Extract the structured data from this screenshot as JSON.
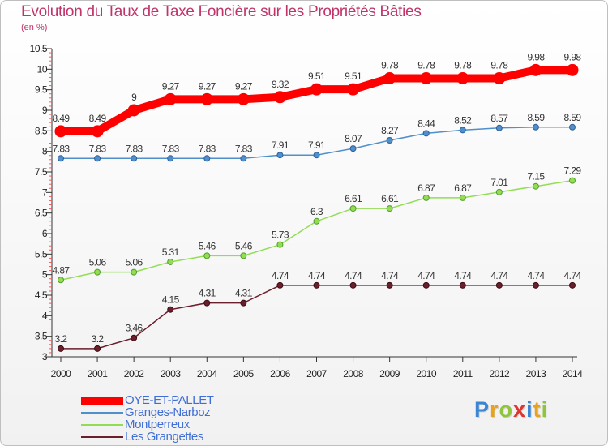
{
  "chart_data": {
    "type": "line",
    "title": "Evolution du Taux de Taxe Foncière sur les Propriétés Bâties",
    "subtitle": "(en %)",
    "xlabel": "",
    "ylabel": "",
    "ylim": [
      3,
      10.5
    ],
    "y_ticks": [
      "3",
      "3.5",
      "4",
      "4.5",
      "5",
      "5.5",
      "6",
      "6.5",
      "7",
      "7.5",
      "8",
      "8.5",
      "9",
      "9.5",
      "10",
      "10.5"
    ],
    "categories": [
      "2000",
      "2001",
      "2002",
      "2003",
      "2004",
      "2005",
      "2006",
      "2007",
      "2008",
      "2009",
      "2010",
      "2011",
      "2012",
      "2013",
      "2014"
    ],
    "grid": false,
    "legend_position": "bottom-left",
    "series": [
      {
        "name": "OYE-ET-PALLET",
        "color": "#ff0000",
        "values": [
          8.49,
          8.49,
          9,
          9.27,
          9.27,
          9.27,
          9.32,
          9.51,
          9.51,
          9.78,
          9.78,
          9.78,
          9.78,
          9.98,
          9.98
        ],
        "labels": [
          "8.49",
          "8.49",
          "9",
          "9.27",
          "9.27",
          "9.27",
          "9.32",
          "9.51",
          "9.51",
          "9.78",
          "9.78",
          "9.78",
          "9.78",
          "9.98",
          "9.98"
        ]
      },
      {
        "name": "Granges-Narboz",
        "color": "#4f8fcc",
        "values": [
          7.83,
          7.83,
          7.83,
          7.83,
          7.83,
          7.83,
          7.91,
          7.91,
          8.07,
          8.27,
          8.44,
          8.52,
          8.57,
          8.59,
          8.59
        ],
        "labels": [
          "7.83",
          "7.83",
          "7.83",
          "7.83",
          "7.83",
          "7.83",
          "7.91",
          "7.91",
          "8.07",
          "8.27",
          "8.44",
          "8.52",
          "8.57",
          "8.59",
          "8.59"
        ]
      },
      {
        "name": "Montperreux",
        "color": "#93dd55",
        "values": [
          4.87,
          5.06,
          5.06,
          5.31,
          5.46,
          5.46,
          5.73,
          6.3,
          6.61,
          6.61,
          6.87,
          6.87,
          7.01,
          7.15,
          7.29
        ],
        "labels": [
          "4.87",
          "5.06",
          "5.06",
          "5.31",
          "5.46",
          "5.46",
          "5.73",
          "6.3",
          "6.61",
          "6.61",
          "6.87",
          "6.87",
          "7.01",
          "7.15",
          "7.29"
        ]
      },
      {
        "name": "Les Grangettes",
        "color": "#6b1e2b",
        "values": [
          3.2,
          3.2,
          3.46,
          4.15,
          4.31,
          4.31,
          4.74,
          4.74,
          4.74,
          4.74,
          4.74,
          4.74,
          4.74,
          4.74,
          4.74
        ],
        "labels": [
          "3.2",
          "3.2",
          "3.46",
          "4.15",
          "4.31",
          "4.31",
          "4.74",
          "4.74",
          "4.74",
          "4.74",
          "4.74",
          "4.74",
          "4.74",
          "4.74",
          "4.74"
        ]
      }
    ]
  },
  "logo": {
    "letters": [
      "P",
      "r",
      "o",
      "x",
      "i",
      "t",
      "i"
    ],
    "colors": [
      "#3a86d4",
      "#e8a21c",
      "#8fc43c",
      "#e0342f",
      "#3a86d4",
      "#e8a21c",
      "#8fc43c"
    ]
  }
}
